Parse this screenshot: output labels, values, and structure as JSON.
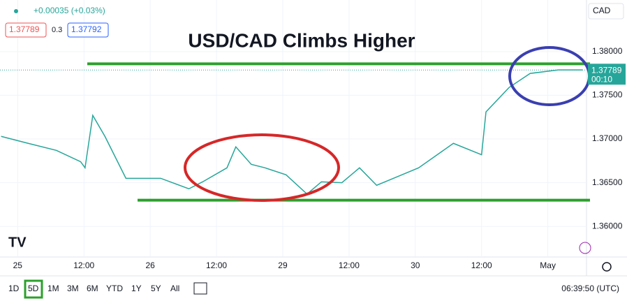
{
  "chart_data": {
    "type": "line",
    "title": "USD/CAD Climbs Higher",
    "x": [
      -3,
      1.9,
      7,
      11.4,
      12.2,
      13.6,
      15.8,
      19.6,
      25.9,
      31,
      33.5,
      37.9,
      39.5,
      42.3,
      44.8,
      48.6,
      52.4,
      55,
      58.7,
      61.9,
      65,
      72.6,
      78.9,
      84,
      84.8,
      89,
      92.8,
      97.9,
      102.3
    ],
    "series": [
      {
        "color": "#26a69a",
        "values": [
          1.3703,
          1.3695,
          1.3687,
          1.3674,
          1.3667,
          1.3727,
          1.3703,
          1.3655,
          1.3655,
          1.3643,
          1.3651,
          1.3667,
          1.3691,
          1.3671,
          1.3667,
          1.3659,
          1.3637,
          1.3651,
          1.365,
          1.3667,
          1.3647,
          1.3667,
          1.3695,
          1.3682,
          1.3731,
          1.3759,
          1.3775,
          1.3779,
          1.3779
        ]
      }
    ],
    "xlim": [
      -3.2,
      103
    ],
    "xticks": [
      {
        "value": 0,
        "label": "25"
      },
      {
        "value": 12,
        "label": "12:00"
      },
      {
        "value": 24,
        "label": "26"
      },
      {
        "value": 36,
        "label": "12:00"
      },
      {
        "value": 48,
        "label": "29"
      },
      {
        "value": 60,
        "label": "12:00"
      },
      {
        "value": 72,
        "label": "30"
      },
      {
        "value": 84,
        "label": "12:00"
      },
      {
        "value": 96,
        "label": "May"
      }
    ],
    "ylim": [
      1.3565,
      1.3859
    ],
    "yticks": [
      {
        "value": 1.36,
        "label": "1.36000"
      },
      {
        "value": 1.365,
        "label": "1.36500"
      },
      {
        "value": 1.37,
        "label": "1.37000"
      },
      {
        "value": 1.375,
        "label": "1.37500"
      },
      {
        "value": 1.38,
        "label": "1.38000"
      }
    ],
    "hlines": [
      {
        "value": 1.3786,
        "color": "#2ca02c"
      },
      {
        "value": 1.363,
        "color": "#2ca02c"
      }
    ],
    "last": 1.37789,
    "grid": true
  },
  "ui": {
    "change": "+0.00035 (+0.03%)",
    "bid": "1.37789",
    "spread": "0.3",
    "ask": "1.37792",
    "currency": "CAD",
    "last_label": "1.37789",
    "countdown": "00:10",
    "ranges": [
      "1D",
      "5D",
      "1M",
      "3M",
      "6M",
      "YTD",
      "1Y",
      "5Y",
      "All"
    ],
    "clock": "06:39:50 (UTC)"
  }
}
